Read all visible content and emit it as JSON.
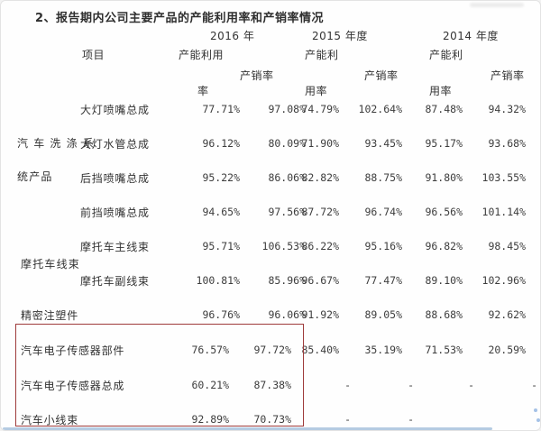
{
  "title": "2、报告期内公司主要产品的产能利用率和产销率情况",
  "colors": {
    "highlight_box": "#9e3b3b",
    "bottom_line": "#b5cbe2",
    "speck_blue": "#5b8fd4"
  },
  "table": {
    "item_header": "项目",
    "year_groups": [
      {
        "year": "2016 年",
        "cap_line1": "产能利用",
        "cap_line2": "率",
        "sales": "产销率"
      },
      {
        "year": "2015 年度",
        "cap_line1": "产能利",
        "cap_line2": "用率",
        "sales": "产销率"
      },
      {
        "year": "2014 年度",
        "cap_line1": "产能利",
        "cap_line2": "用率",
        "sales": "产销率"
      }
    ],
    "group_labels": [
      {
        "text": "汽 车 洗 涤 系"
      },
      {
        "text": "统产品"
      },
      {
        "text": "摩托车线束"
      }
    ],
    "rows": [
      {
        "label": "大灯喷嘴总成",
        "full": false,
        "boxed": false,
        "values": [
          "77.71%",
          "97.08%",
          "74.79%",
          "102.64%",
          "87.48%",
          "94.32%"
        ]
      },
      {
        "label": "大灯水管总成",
        "full": false,
        "boxed": false,
        "values": [
          "96.12%",
          "80.09%",
          "71.90%",
          "93.45%",
          "95.17%",
          "93.68%"
        ]
      },
      {
        "label": "后挡喷嘴总成",
        "full": false,
        "boxed": false,
        "values": [
          "95.22%",
          "86.06%",
          "82.82%",
          "88.75%",
          "91.80%",
          "103.55%"
        ]
      },
      {
        "label": "前挡喷嘴总成",
        "full": false,
        "boxed": false,
        "values": [
          "94.65%",
          "97.56%",
          "87.72%",
          "96.74%",
          "96.56%",
          "101.14%"
        ]
      },
      {
        "label": "摩托车主线束",
        "full": false,
        "boxed": false,
        "values": [
          "95.71%",
          "106.53%",
          "86.22%",
          "95.16%",
          "96.82%",
          "98.45%"
        ]
      },
      {
        "label": "摩托车副线束",
        "full": false,
        "boxed": false,
        "values": [
          "100.81%",
          "85.96%",
          "96.67%",
          "77.47%",
          "89.10%",
          "102.96%"
        ]
      },
      {
        "label": "精密注塑件",
        "full": true,
        "boxed": false,
        "values": [
          "96.76%",
          "96.06%",
          "91.92%",
          "89.05%",
          "88.68%",
          "92.62%"
        ]
      },
      {
        "label": "汽车电子传感器部件",
        "full": true,
        "boxed": true,
        "values": [
          "76.57%",
          "97.72%",
          "85.40%",
          "35.19%",
          "71.53%",
          "20.59%"
        ]
      },
      {
        "label": "汽车电子传感器总成",
        "full": true,
        "boxed": true,
        "values": [
          "60.21%",
          "87.38%",
          "-",
          "-",
          "-",
          "-"
        ]
      },
      {
        "label": "汽车小线束",
        "full": true,
        "boxed": true,
        "values": [
          "92.89%",
          "70.73%",
          "-",
          "-",
          "",
          ""
        ]
      }
    ]
  }
}
